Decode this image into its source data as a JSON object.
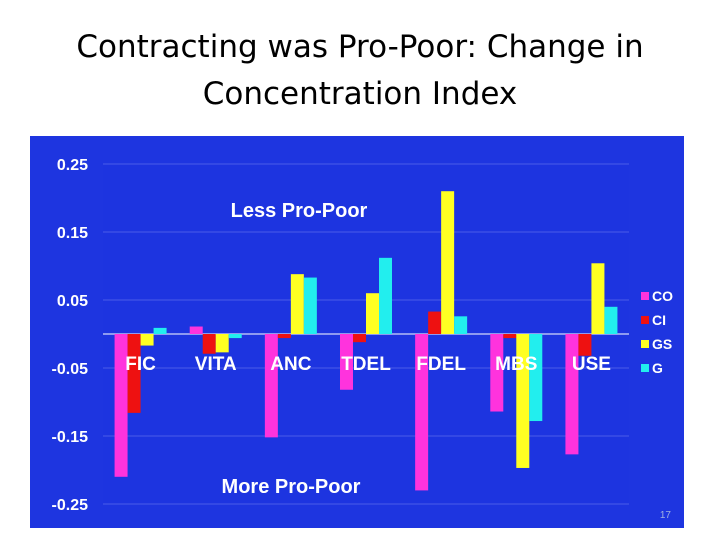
{
  "slide": {
    "title_line1": "Contracting was Pro-Poor: Change in",
    "title_line2": "Concentration Index",
    "slide_number": "17"
  },
  "colors": {
    "panel_background": "#1e35e0",
    "plot_area": "#1d34e0",
    "CO": "#ff33dd",
    "CI": "#ee1111",
    "GS": "#ffff22",
    "G": "#22eeee"
  },
  "chart_data": {
    "type": "bar",
    "categories": [
      "FIC",
      "VITA",
      "ANC",
      "TDEL",
      "FDEL",
      "MBS",
      "USE"
    ],
    "series": [
      {
        "name": "CO",
        "values": [
          -0.21,
          0.011,
          -0.152,
          -0.082,
          -0.23,
          -0.114,
          -0.177
        ]
      },
      {
        "name": "CI",
        "values": [
          -0.116,
          -0.029,
          -0.006,
          -0.012,
          0.033,
          -0.006,
          -0.032
        ]
      },
      {
        "name": "GS",
        "values": [
          -0.017,
          -0.027,
          0.088,
          0.06,
          0.21,
          -0.197,
          0.104
        ]
      },
      {
        "name": "G",
        "values": [
          0.009,
          -0.006,
          0.083,
          0.112,
          0.026,
          -0.128,
          0.04
        ]
      }
    ],
    "yticks": [
      "0.25",
      "0.15",
      "0.05",
      "-0.05",
      "-0.15",
      "-0.25"
    ],
    "ylim": [
      -0.25,
      0.25
    ],
    "grid": true,
    "legend_position": "right",
    "annotations": [
      "Less Pro-Poor",
      "More Pro-Poor"
    ]
  }
}
